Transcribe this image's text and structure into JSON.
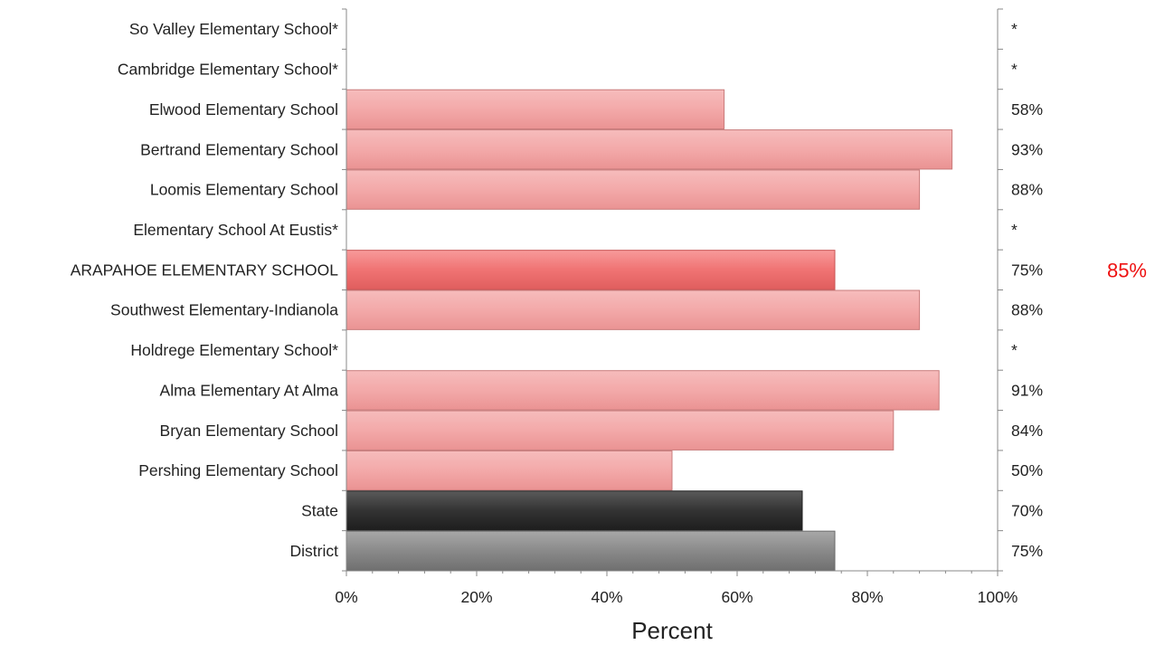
{
  "chart_data": {
    "type": "bar",
    "orientation": "horizontal",
    "title": "",
    "xlabel": "Percent",
    "ylabel": "",
    "xlim": [
      0,
      100
    ],
    "grid": false,
    "legend": "none",
    "x_ticks": [
      "0%",
      "20%",
      "40%",
      "60%",
      "80%",
      "100%"
    ],
    "categories": [
      "So Valley Elementary School*",
      "Cambridge Elementary School*",
      "Elwood Elementary School",
      "Bertrand Elementary School",
      "Loomis Elementary School",
      "Elementary School At Eustis*",
      "ARAPAHOE ELEMENTARY SCHOOL",
      "Southwest Elementary-Indianola",
      "Holdrege Elementary School*",
      "Alma Elementary At Alma",
      "Bryan Elementary School",
      "Pershing Elementary School",
      "State",
      "District"
    ],
    "values": [
      null,
      null,
      58,
      93,
      88,
      null,
      75,
      88,
      null,
      91,
      84,
      50,
      70,
      75
    ],
    "value_labels": [
      "*",
      "*",
      "58%",
      "93%",
      "88%",
      "*",
      "75%",
      "88%",
      "*",
      "91%",
      "84%",
      "50%",
      "70%",
      "75%"
    ],
    "highlight": {
      "category": "ARAPAHOE ELEMENTARY SCHOOL",
      "side_label": "85%",
      "side_label_color": "#ee1111"
    },
    "colors": {
      "school": "#f2a8a8",
      "highlight": "#f07a7a",
      "state": "#3a3a3a",
      "district": "#8a8a8a"
    }
  }
}
